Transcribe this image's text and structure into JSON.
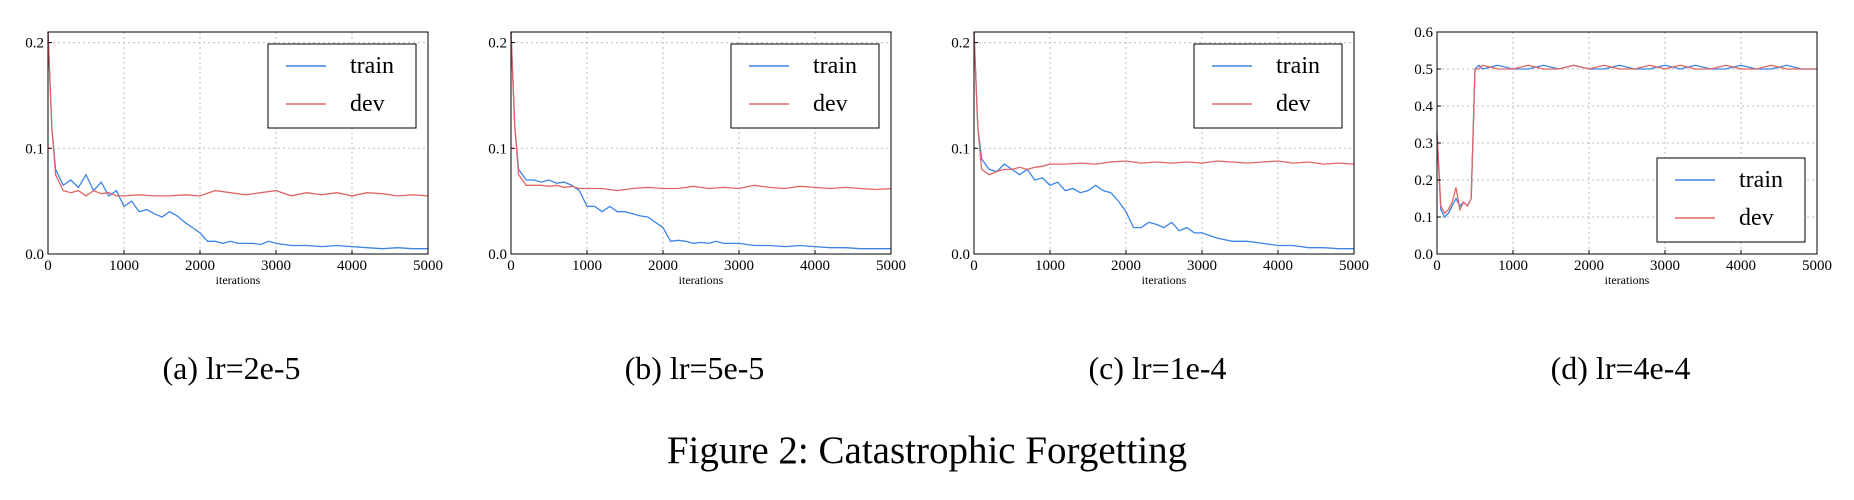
{
  "figure_caption": "Figure 2: Catastrophic Forgetting",
  "colors": {
    "train": "#3c84e6",
    "dev": "#e06666"
  },
  "chart_data": [
    {
      "type": "line",
      "caption": "(a) lr=2e-5",
      "xlabel": "iterations",
      "ylabel": "",
      "xlim": [
        0,
        5000
      ],
      "ylim": [
        0,
        0.21
      ],
      "xticks": [
        0,
        1000,
        2000,
        3000,
        4000,
        5000
      ],
      "yticks": [
        0.0,
        0.1,
        0.2
      ],
      "grid": true,
      "legend": "top-right",
      "series": [
        {
          "name": "train",
          "color": "#3c84e6",
          "x": [
            0,
            50,
            100,
            200,
            300,
            400,
            500,
            600,
            700,
            800,
            900,
            1000,
            1100,
            1200,
            1300,
            1400,
            1500,
            1600,
            1700,
            1800,
            1900,
            2000,
            2100,
            2200,
            2300,
            2400,
            2500,
            2600,
            2700,
            2800,
            2900,
            3000,
            3200,
            3400,
            3600,
            3800,
            4000,
            4200,
            4400,
            4600,
            4800,
            5000
          ],
          "y": [
            0.21,
            0.12,
            0.08,
            0.065,
            0.07,
            0.063,
            0.075,
            0.06,
            0.068,
            0.055,
            0.06,
            0.045,
            0.05,
            0.04,
            0.042,
            0.038,
            0.035,
            0.04,
            0.036,
            0.03,
            0.025,
            0.02,
            0.012,
            0.012,
            0.01,
            0.012,
            0.01,
            0.01,
            0.01,
            0.009,
            0.012,
            0.01,
            0.008,
            0.008,
            0.007,
            0.008,
            0.007,
            0.006,
            0.005,
            0.006,
            0.005,
            0.005
          ]
        },
        {
          "name": "dev",
          "color": "#e06666",
          "x": [
            0,
            50,
            100,
            200,
            300,
            400,
            500,
            600,
            700,
            800,
            900,
            1000,
            1200,
            1400,
            1600,
            1800,
            2000,
            2200,
            2400,
            2600,
            2800,
            3000,
            3200,
            3400,
            3600,
            3800,
            4000,
            4200,
            4400,
            4600,
            4800,
            5000
          ],
          "y": [
            0.21,
            0.12,
            0.075,
            0.06,
            0.058,
            0.06,
            0.055,
            0.06,
            0.057,
            0.058,
            0.055,
            0.055,
            0.056,
            0.055,
            0.055,
            0.056,
            0.055,
            0.06,
            0.058,
            0.056,
            0.058,
            0.06,
            0.055,
            0.058,
            0.056,
            0.058,
            0.055,
            0.058,
            0.057,
            0.055,
            0.056,
            0.055
          ]
        }
      ]
    },
    {
      "type": "line",
      "caption": "(b) lr=5e-5",
      "xlabel": "iterations",
      "ylabel": "",
      "xlim": [
        0,
        5000
      ],
      "ylim": [
        0,
        0.21
      ],
      "xticks": [
        0,
        1000,
        2000,
        3000,
        4000,
        5000
      ],
      "yticks": [
        0.0,
        0.1,
        0.2
      ],
      "grid": true,
      "legend": "top-right",
      "series": [
        {
          "name": "train",
          "color": "#3c84e6",
          "x": [
            0,
            50,
            100,
            200,
            300,
            400,
            500,
            600,
            700,
            800,
            900,
            1000,
            1100,
            1200,
            1300,
            1400,
            1500,
            1600,
            1700,
            1800,
            1900,
            2000,
            2100,
            2200,
            2300,
            2400,
            2500,
            2600,
            2700,
            2800,
            2900,
            3000,
            3200,
            3400,
            3600,
            3800,
            4000,
            4200,
            4400,
            4600,
            4800,
            5000
          ],
          "y": [
            0.21,
            0.12,
            0.08,
            0.07,
            0.07,
            0.068,
            0.07,
            0.067,
            0.068,
            0.065,
            0.06,
            0.045,
            0.045,
            0.04,
            0.045,
            0.04,
            0.04,
            0.038,
            0.036,
            0.035,
            0.03,
            0.025,
            0.012,
            0.013,
            0.012,
            0.01,
            0.011,
            0.01,
            0.012,
            0.01,
            0.01,
            0.01,
            0.008,
            0.008,
            0.007,
            0.008,
            0.007,
            0.006,
            0.006,
            0.005,
            0.005,
            0.005
          ]
        },
        {
          "name": "dev",
          "color": "#e06666",
          "x": [
            0,
            50,
            100,
            200,
            300,
            400,
            500,
            600,
            700,
            800,
            900,
            1000,
            1200,
            1400,
            1600,
            1800,
            2000,
            2200,
            2400,
            2600,
            2800,
            3000,
            3200,
            3400,
            3600,
            3800,
            4000,
            4200,
            4400,
            4600,
            4800,
            5000
          ],
          "y": [
            0.21,
            0.12,
            0.075,
            0.065,
            0.065,
            0.065,
            0.064,
            0.065,
            0.063,
            0.064,
            0.062,
            0.062,
            0.062,
            0.06,
            0.062,
            0.063,
            0.062,
            0.062,
            0.064,
            0.062,
            0.063,
            0.062,
            0.065,
            0.063,
            0.062,
            0.064,
            0.063,
            0.062,
            0.063,
            0.062,
            0.061,
            0.062
          ]
        }
      ]
    },
    {
      "type": "line",
      "caption": "(c) lr=1e-4",
      "xlabel": "iterations",
      "ylabel": "",
      "xlim": [
        0,
        5000
      ],
      "ylim": [
        0,
        0.21
      ],
      "xticks": [
        0,
        1000,
        2000,
        3000,
        4000,
        5000
      ],
      "yticks": [
        0.0,
        0.1,
        0.2
      ],
      "grid": true,
      "legend": "top-right",
      "series": [
        {
          "name": "train",
          "color": "#3c84e6",
          "x": [
            0,
            50,
            100,
            200,
            300,
            400,
            500,
            600,
            700,
            800,
            900,
            1000,
            1100,
            1200,
            1300,
            1400,
            1500,
            1600,
            1700,
            1800,
            1900,
            2000,
            2100,
            2200,
            2300,
            2400,
            2500,
            2600,
            2700,
            2800,
            2900,
            3000,
            3200,
            3400,
            3600,
            3800,
            4000,
            4200,
            4400,
            4600,
            4800,
            5000
          ],
          "y": [
            0.21,
            0.12,
            0.09,
            0.08,
            0.078,
            0.085,
            0.08,
            0.075,
            0.08,
            0.07,
            0.072,
            0.065,
            0.068,
            0.06,
            0.062,
            0.058,
            0.06,
            0.065,
            0.06,
            0.058,
            0.05,
            0.04,
            0.025,
            0.025,
            0.03,
            0.028,
            0.025,
            0.03,
            0.022,
            0.025,
            0.02,
            0.02,
            0.015,
            0.012,
            0.012,
            0.01,
            0.008,
            0.008,
            0.006,
            0.006,
            0.005,
            0.005
          ]
        },
        {
          "name": "dev",
          "color": "#e06666",
          "x": [
            0,
            50,
            100,
            200,
            300,
            400,
            500,
            600,
            700,
            800,
            900,
            1000,
            1200,
            1400,
            1600,
            1800,
            2000,
            2200,
            2400,
            2600,
            2800,
            3000,
            3200,
            3400,
            3600,
            3800,
            4000,
            4200,
            4400,
            4600,
            4800,
            5000
          ],
          "y": [
            0.21,
            0.12,
            0.08,
            0.075,
            0.078,
            0.08,
            0.08,
            0.082,
            0.08,
            0.082,
            0.083,
            0.085,
            0.085,
            0.086,
            0.085,
            0.087,
            0.088,
            0.086,
            0.087,
            0.086,
            0.087,
            0.086,
            0.088,
            0.087,
            0.086,
            0.087,
            0.088,
            0.086,
            0.087,
            0.085,
            0.086,
            0.085
          ]
        }
      ]
    },
    {
      "type": "line",
      "caption": "(d) lr=4e-4",
      "xlabel": "iterations",
      "ylabel": "",
      "xlim": [
        0,
        5000
      ],
      "ylim": [
        0,
        0.6
      ],
      "xticks": [
        0,
        1000,
        2000,
        3000,
        4000,
        5000
      ],
      "yticks": [
        0.0,
        0.1,
        0.2,
        0.3,
        0.4,
        0.5,
        0.6
      ],
      "grid": true,
      "legend": "bottom-right",
      "series": [
        {
          "name": "train",
          "color": "#3c84e6",
          "x": [
            0,
            50,
            100,
            150,
            200,
            250,
            300,
            350,
            400,
            450,
            500,
            550,
            600,
            800,
            1000,
            1200,
            1400,
            1600,
            1800,
            2000,
            2200,
            2400,
            2600,
            2800,
            3000,
            3200,
            3400,
            3600,
            3800,
            4000,
            4200,
            4400,
            4600,
            4800,
            5000
          ],
          "y": [
            0.32,
            0.12,
            0.1,
            0.11,
            0.13,
            0.15,
            0.13,
            0.14,
            0.13,
            0.15,
            0.5,
            0.51,
            0.5,
            0.51,
            0.5,
            0.5,
            0.51,
            0.5,
            0.51,
            0.5,
            0.5,
            0.51,
            0.5,
            0.5,
            0.51,
            0.5,
            0.51,
            0.5,
            0.5,
            0.51,
            0.5,
            0.5,
            0.51,
            0.5,
            0.5
          ]
        },
        {
          "name": "dev",
          "color": "#e06666",
          "x": [
            0,
            50,
            100,
            150,
            200,
            250,
            300,
            350,
            400,
            450,
            500,
            550,
            600,
            800,
            1000,
            1200,
            1400,
            1600,
            1800,
            2000,
            2200,
            2400,
            2600,
            2800,
            3000,
            3200,
            3400,
            3600,
            3800,
            4000,
            4200,
            4400,
            4600,
            4800,
            5000
          ],
          "y": [
            0.33,
            0.13,
            0.11,
            0.12,
            0.14,
            0.18,
            0.12,
            0.14,
            0.13,
            0.15,
            0.5,
            0.5,
            0.51,
            0.5,
            0.5,
            0.51,
            0.5,
            0.5,
            0.51,
            0.5,
            0.51,
            0.5,
            0.5,
            0.51,
            0.5,
            0.51,
            0.5,
            0.5,
            0.51,
            0.5,
            0.5,
            0.51,
            0.5,
            0.5,
            0.5
          ]
        }
      ]
    }
  ]
}
